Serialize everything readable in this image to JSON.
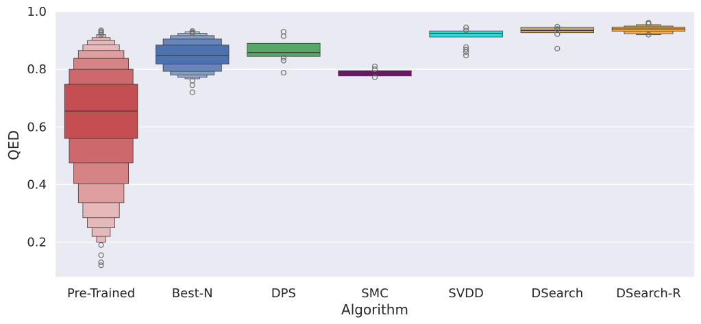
{
  "chart_data": {
    "type": "boxen",
    "xlabel": "Algorithm",
    "ylabel": "QED",
    "ylim": [
      0.08,
      1.0
    ],
    "yticks": [
      "0.2",
      "0.4",
      "0.6",
      "0.8",
      "1.0"
    ],
    "ytick_values": [
      0.2,
      0.4,
      0.6,
      0.8,
      1.0
    ],
    "grid": true,
    "colors": {
      "background": "#eaeaf2",
      "grid": "#ffffff",
      "outlier": "#6e6e6e",
      "edge": "#3a3a3a"
    },
    "series": [
      {
        "category": "Pre-Trained",
        "color": "#c44e52",
        "median": 0.655,
        "boxes": [
          [
            0.56,
            0.748
          ],
          [
            0.475,
            0.8
          ],
          [
            0.403,
            0.838
          ],
          [
            0.337,
            0.865
          ],
          [
            0.285,
            0.885
          ],
          [
            0.25,
            0.9
          ],
          [
            0.22,
            0.91
          ],
          [
            0.2,
            0.92
          ]
        ],
        "outliers": [
          0.12,
          0.13,
          0.155,
          0.19,
          0.92,
          0.926,
          0.93,
          0.935
        ]
      },
      {
        "category": "Best-N",
        "color": "#4c72b0",
        "median": 0.848,
        "boxes": [
          [
            0.818,
            0.884
          ],
          [
            0.793,
            0.905
          ],
          [
            0.78,
            0.917
          ],
          [
            0.772,
            0.925
          ],
          [
            0.767,
            0.93
          ]
        ],
        "outliers": [
          0.72,
          0.745,
          0.76,
          0.925,
          0.928,
          0.933
        ]
      },
      {
        "category": "DPS",
        "color": "#55a868",
        "median": 0.858,
        "boxes": [
          [
            0.845,
            0.89
          ]
        ],
        "outliers": [
          0.788,
          0.83,
          0.84,
          0.915,
          0.93
        ]
      },
      {
        "category": "SMC",
        "color": "#7a0c7a",
        "median": 0.787,
        "boxes": [
          [
            0.777,
            0.795
          ]
        ],
        "outliers": [
          0.772,
          0.8,
          0.81
        ]
      },
      {
        "category": "SVDD",
        "color": "#1ee0e0",
        "median": 0.925,
        "boxes": [
          [
            0.912,
            0.933
          ]
        ],
        "outliers": [
          0.848,
          0.86,
          0.868,
          0.877,
          0.935,
          0.945
        ]
      },
      {
        "category": "DSearch",
        "color": "#c9a96b",
        "median": 0.935,
        "boxes": [
          [
            0.927,
            0.945
          ]
        ],
        "outliers": [
          0.872,
          0.922,
          0.94,
          0.948
        ]
      },
      {
        "category": "DSearch-R",
        "color": "#f0a53a",
        "median": 0.94,
        "boxes": [
          [
            0.932,
            0.946
          ],
          [
            0.923,
            0.95
          ],
          [
            0.92,
            0.955
          ]
        ],
        "outliers": [
          0.92,
          0.958,
          0.962
        ]
      }
    ]
  }
}
